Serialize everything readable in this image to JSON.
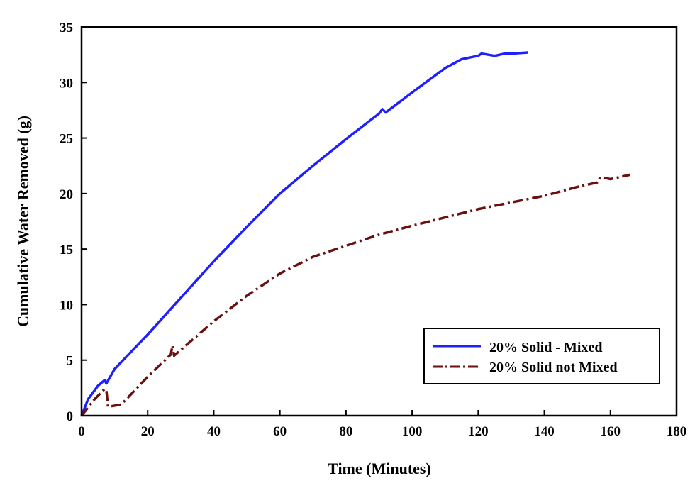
{
  "chart_data": {
    "type": "line",
    "title": "",
    "xlabel": "Time (Minutes)",
    "ylabel": "Cumulative Water Removed (g)",
    "xlim": [
      0,
      180
    ],
    "ylim": [
      0,
      35
    ],
    "xticks": [
      0,
      20,
      40,
      60,
      80,
      100,
      120,
      140,
      160,
      180
    ],
    "yticks": [
      0,
      5,
      10,
      15,
      20,
      25,
      30,
      35
    ],
    "grid": false,
    "legend_position": "bottom-right",
    "series": [
      {
        "name": "20% Solid - Mixed",
        "color": "#1f1fff",
        "style": "solid",
        "x": [
          0,
          2,
          5,
          7,
          7.5,
          10,
          20,
          30,
          40,
          50,
          60,
          70,
          80,
          90,
          91,
          92,
          100,
          110,
          115,
          120,
          121,
          125,
          128,
          130,
          135
        ],
        "y": [
          0,
          1.5,
          2.7,
          3.2,
          2.9,
          4.2,
          7.3,
          10.6,
          13.9,
          17.0,
          20.0,
          22.5,
          24.9,
          27.2,
          27.6,
          27.3,
          29.1,
          31.3,
          32.1,
          32.4,
          32.6,
          32.4,
          32.6,
          32.6,
          32.7
        ]
      },
      {
        "name": "20% Solid not Mixed",
        "color": "#6b1010",
        "style": "dashdot",
        "x": [
          0,
          4,
          7,
          7.5,
          8,
          12,
          20,
          27,
          27.5,
          28,
          40,
          50,
          60,
          70,
          80,
          90,
          100,
          120,
          140,
          150,
          156,
          157,
          160,
          166
        ],
        "y": [
          0,
          1.5,
          2.4,
          2.3,
          0.8,
          1.0,
          3.5,
          5.5,
          6.3,
          5.4,
          8.5,
          10.8,
          12.8,
          14.3,
          15.3,
          16.3,
          17.1,
          18.6,
          19.8,
          20.6,
          21.0,
          21.5,
          21.3,
          21.7
        ]
      }
    ]
  }
}
